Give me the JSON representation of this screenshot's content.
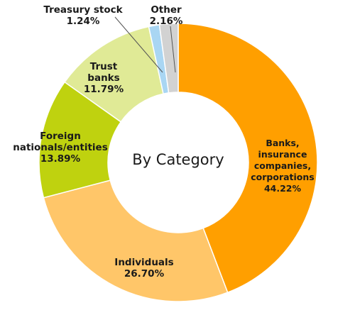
{
  "chart_data": {
    "type": "pie",
    "variant": "donut",
    "center_title": "By Category",
    "slices": [
      {
        "label": [
          "Banks,",
          "insurance",
          "companies,",
          "corporations"
        ],
        "value": 44.22,
        "display": "44.22%",
        "color": "#ff9f00"
      },
      {
        "label": [
          "Individuals"
        ],
        "value": 26.7,
        "display": "26.70%",
        "color": "#ffc669"
      },
      {
        "label": [
          "Foreign",
          "nationals/entities"
        ],
        "value": 13.89,
        "display": "13.89%",
        "color": "#bfd20f"
      },
      {
        "label": [
          "Trust",
          "banks"
        ],
        "value": 11.79,
        "display": "11.79%",
        "color": "#e0ea96"
      },
      {
        "label": [
          "Treasury stock"
        ],
        "value": 1.24,
        "display": "1.24%",
        "color": "#a9d6f3"
      },
      {
        "label": [
          "Other"
        ],
        "value": 2.16,
        "display": "2.16%",
        "color": "#d2d2d2"
      }
    ],
    "start": "top",
    "direction": "clockwise",
    "legend": "none"
  }
}
